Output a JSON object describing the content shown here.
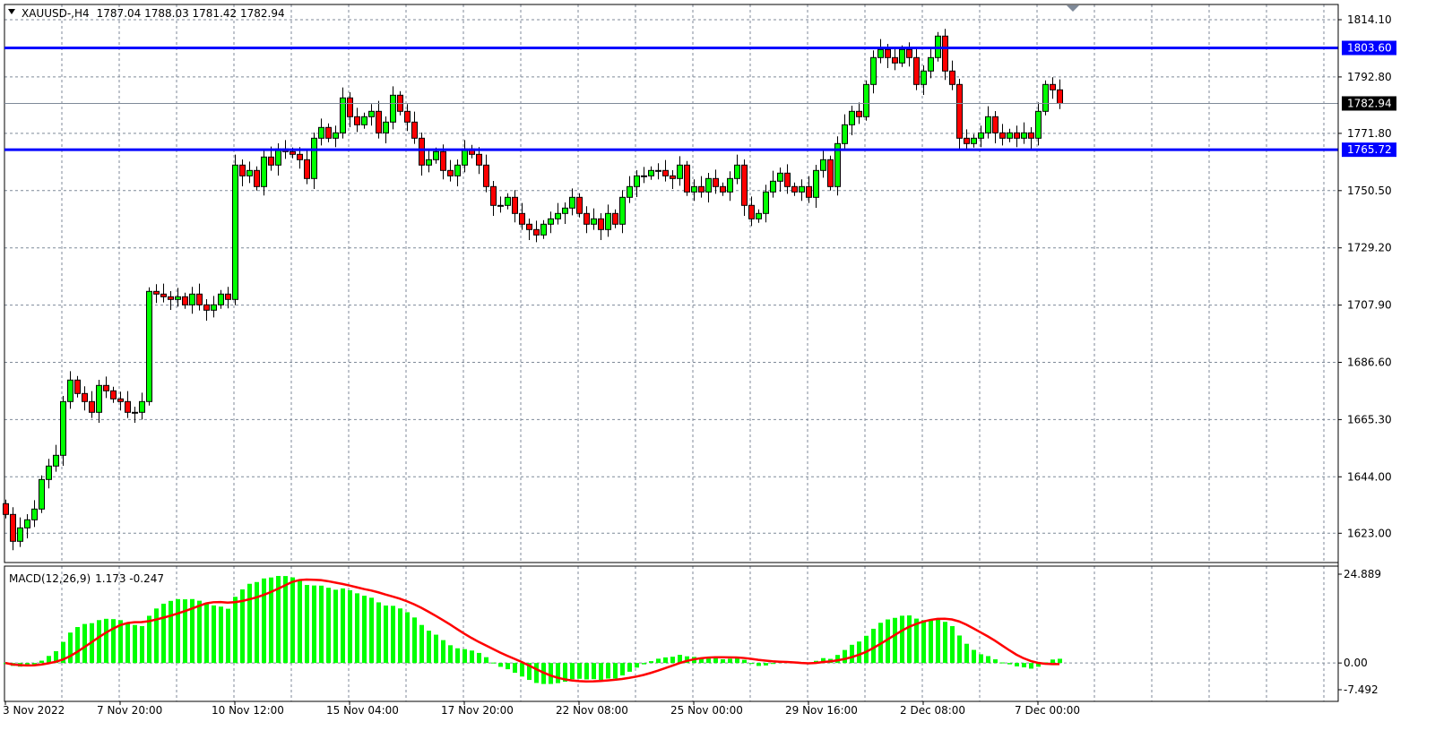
{
  "header": {
    "symbol": "XAUUSD-,H4",
    "ohlc_text": "1787.04 1788.03 1781.42 1782.94"
  },
  "colors": {
    "bull": "#00ff00",
    "bear": "#ff0000",
    "hline": "#0000ff",
    "grid": "#7f8a99",
    "macd_hist": "#00ff00",
    "macd_signal": "#ff0000"
  },
  "chart_data": [
    {
      "type": "candlestick",
      "symbol": "XAUUSD-",
      "timeframe": "H4",
      "ylim": [
        1614,
        1820
      ],
      "y_ticks": [
        "1814.10",
        "1792.80",
        "1771.80",
        "1750.50",
        "1729.20",
        "1707.90",
        "1686.60",
        "1665.30",
        "1644.00",
        "1623.00"
      ],
      "x_ticks": [
        "3 Nov 2022",
        "7 Nov 20:00",
        "10 Nov 12:00",
        "15 Nov 04:00",
        "17 Nov 20:00",
        "22 Nov 08:00",
        "25 Nov 00:00",
        "29 Nov 16:00",
        "2 Dec 08:00",
        "7 Dec 00:00"
      ],
      "grid": true,
      "horizontal_lines": [
        {
          "price": "1803.60"
        },
        {
          "price": "1765.72"
        }
      ],
      "current_price": "1782.94",
      "closes": [
        1630,
        1620,
        1625,
        1628,
        1632,
        1643,
        1648,
        1652,
        1672,
        1680,
        1675,
        1672,
        1668,
        1678,
        1676,
        1673,
        1672,
        1668,
        1668,
        1672,
        1713,
        1712,
        1711,
        1710,
        1711,
        1708,
        1712,
        1708,
        1706,
        1708,
        1712,
        1710,
        1760,
        1756,
        1758,
        1752,
        1763,
        1760,
        1766,
        1765,
        1764,
        1762,
        1755,
        1770,
        1774,
        1770,
        1772,
        1785,
        1778,
        1775,
        1778,
        1780,
        1772,
        1776,
        1786,
        1780,
        1776,
        1770,
        1760,
        1762,
        1765,
        1758,
        1756,
        1760,
        1766,
        1764,
        1760,
        1752,
        1745,
        1745,
        1748,
        1742,
        1738,
        1736,
        1734,
        1738,
        1740,
        1742,
        1744,
        1748,
        1742,
        1738,
        1740,
        1736,
        1742,
        1738,
        1748,
        1752,
        1756,
        1756,
        1758,
        1758,
        1756,
        1755,
        1760,
        1750,
        1752,
        1750,
        1755,
        1752,
        1750,
        1755,
        1760,
        1745,
        1740,
        1742,
        1750,
        1754,
        1757,
        1752,
        1750,
        1752,
        1748,
        1758,
        1762,
        1752,
        1768,
        1775,
        1780,
        1778,
        1790,
        1800,
        1803,
        1800,
        1798,
        1803,
        1800,
        1790,
        1795,
        1800,
        1808,
        1795,
        1790,
        1770,
        1768,
        1770,
        1772,
        1778,
        1772,
        1770,
        1772,
        1770,
        1772,
        1770,
        1780,
        1790,
        1788,
        1782.94
      ]
    },
    {
      "type": "bar+line",
      "indicator": "MACD(12,26,9)",
      "values_text": "1.173 -0.247",
      "ylim": [
        -7.492,
        24.889
      ],
      "y_ticks": [
        "24.889",
        "0.00",
        "-7.492"
      ]
    }
  ]
}
